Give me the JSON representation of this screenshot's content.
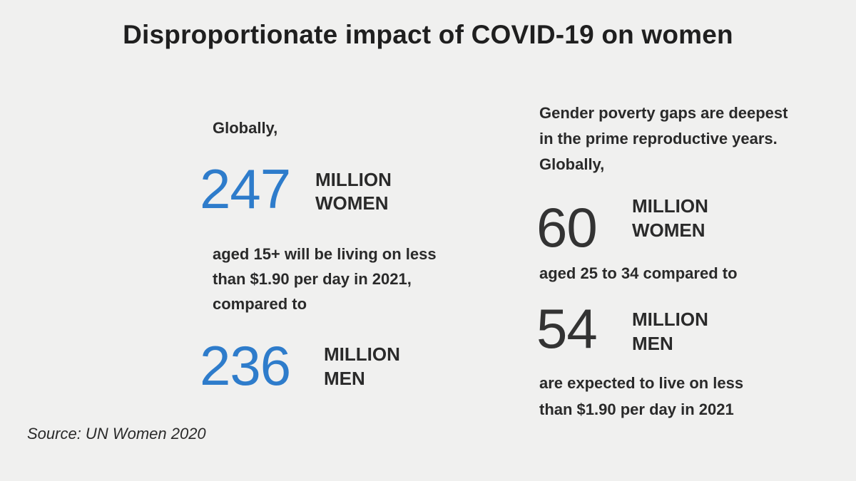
{
  "title": "Disproportionate impact of COVID-19 on women",
  "left": {
    "intro": "Globally,",
    "stat1": {
      "number": "247",
      "unit_line1": "MILLION",
      "unit_line2": "WOMEN"
    },
    "middle_lines": [
      "aged 15+ will be living on less",
      "than $1.90 per day in 2021,",
      "compared to"
    ],
    "stat2": {
      "number": "236",
      "unit_line1": "MILLION",
      "unit_line2": "MEN"
    }
  },
  "right": {
    "intro_lines": [
      "Gender poverty gaps are deepest",
      "in the prime reproductive years.",
      "Globally,"
    ],
    "stat1": {
      "number": "60",
      "unit_line1": "MILLION",
      "unit_line2": "WOMEN"
    },
    "middle": "aged 25 to 34 compared to",
    "stat2": {
      "number": "54",
      "unit_line1": "MILLION",
      "unit_line2": "MEN"
    },
    "outro_lines": [
      "are expected to live on less",
      "than $1.90 per day in 2021"
    ]
  },
  "source": "Source: UN Women 2020",
  "colors": {
    "accent_blue": "#2e7ccb",
    "number_dark": "#333333",
    "background": "#f0f0ef"
  }
}
